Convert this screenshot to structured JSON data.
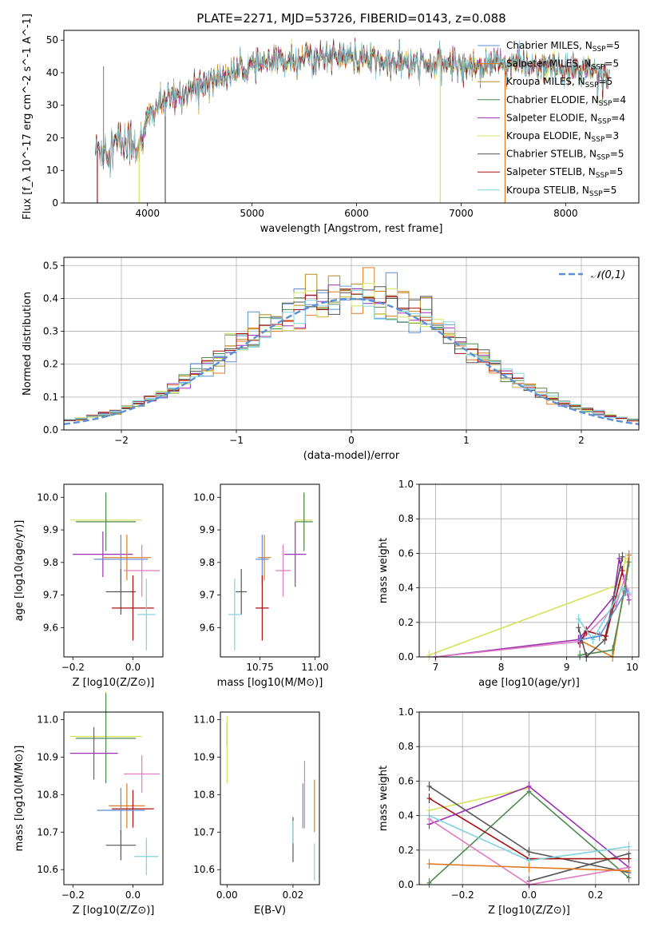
{
  "figure_title": "PLATE=2271, MJD=53726, FIBERID=0143, z=0.088",
  "colors": {
    "chabrier_miles": "#5b8fd6",
    "salpeter_miles": "#e07a20",
    "kroupa_miles": "#b58a22",
    "chabrier_elodie": "#4d8a4d",
    "salpeter_elodie": "#9a31b0",
    "kroupa_elodie": "#d4e35a",
    "chabrier_stelib": "#555555",
    "salpeter_stelib": "#a81010",
    "kroupa_stelib": "#7fd3de",
    "pink": "#e07ac2",
    "gaussian": "#5b8fd6",
    "grid": "#b0b0b0"
  },
  "chart_data": [
    {
      "id": "spectrum",
      "type": "line",
      "title": "PLATE=2271, MJD=53726, FIBERID=0143, z=0.088",
      "xlabel": "wavelength [Angstrom, rest frame]",
      "ylabel": "Flux [f_λ 10^-17 erg cm^-2 s^-1 A^-1]",
      "xlim": [
        3200,
        8700
      ],
      "ylim": [
        0,
        53
      ],
      "xticks": [
        "4000",
        "5000",
        "6000",
        "7000",
        "8000"
      ],
      "yticks": [
        "0",
        "10",
        "20",
        "30",
        "40",
        "50"
      ],
      "grid": false,
      "legend_position": "top-right",
      "series_names": [
        "Chabrier MILES, N_SSP=5",
        "Salpeter MILES, N_SSP=5",
        "Kroupa MILES, N_SSP=5",
        "Chabrier ELODIE, N_SSP=4",
        "Salpeter ELODIE, N_SSP=4",
        "Kroupa ELODIE, N_SSP=3",
        "Chabrier STELIB, N_SSP=5",
        "Salpeter STELIB, N_SSP=5",
        "Kroupa STELIB, N_SSP=5"
      ],
      "approx_continuum": {
        "wavelength": [
          3500,
          3700,
          3850,
          3950,
          4000,
          4100,
          4300,
          4500,
          4800,
          5000,
          5200,
          5500,
          5700,
          5900,
          6100,
          6300,
          6500,
          6700,
          6900,
          7100,
          7300,
          7500,
          7700,
          7900,
          8100,
          8300,
          8400
        ],
        "flux": [
          16,
          18,
          19,
          17,
          26,
          30,
          33,
          36,
          40,
          42,
          43,
          45,
          45,
          45,
          44,
          43,
          43,
          42,
          43,
          42,
          43,
          43,
          42,
          41,
          41,
          40,
          39
        ]
      }
    },
    {
      "id": "residual_histogram",
      "type": "histogram",
      "xlabel": "(data-model)/error",
      "ylabel": "Normed distribution",
      "xlim": [
        -2.5,
        2.5
      ],
      "ylim": [
        0,
        0.525
      ],
      "xticks": [
        "−2",
        "−1",
        "0",
        "1",
        "2"
      ],
      "yticks": [
        "0.0",
        "0.1",
        "0.2",
        "0.3",
        "0.4",
        "0.5"
      ],
      "grid": true,
      "legend": [
        "𝒩(0,1)"
      ],
      "legend_position": "top-right",
      "bin_width": 0.1
    },
    {
      "id": "age_vs_Z",
      "type": "scatter",
      "xlabel": "Z [log10(Z/Z⊙)]",
      "ylabel": "age [log10(age/yr)]",
      "xlim": [
        -0.23,
        0.1
      ],
      "ylim": [
        9.51,
        10.04
      ],
      "xticks": [
        "−0.2",
        "0.0"
      ],
      "yticks": [
        "9.6",
        "9.7",
        "9.8",
        "9.9",
        "10.0"
      ],
      "points": [
        {
          "series": "Kroupa ELODIE",
          "x": -0.09,
          "y": 9.93,
          "xerr": 0.12,
          "yerr": 0.08
        },
        {
          "series": "Chabrier ELODIE",
          "x": -0.09,
          "y": 9.925,
          "xerr": 0.1,
          "yerr": 0.09
        },
        {
          "series": "Salpeter ELODIE",
          "x": -0.1,
          "y": 9.825,
          "xerr": 0.1,
          "yerr": 0.07
        },
        {
          "series": "Salpeter MILES",
          "x": -0.02,
          "y": 9.815,
          "xerr": 0.08,
          "yerr": 0.07
        },
        {
          "series": "Chabrier MILES",
          "x": -0.04,
          "y": 9.81,
          "xerr": 0.09,
          "yerr": 0.075
        },
        {
          "series": "pink",
          "x": 0.03,
          "y": 9.775,
          "xerr": 0.06,
          "yerr": 0.08
        },
        {
          "series": "Chabrier STELIB",
          "x": -0.04,
          "y": 9.71,
          "xerr": 0.05,
          "yerr": 0.07
        },
        {
          "series": "Salpeter STELIB",
          "x": 0.0,
          "y": 9.66,
          "xerr": 0.07,
          "yerr": 0.1
        },
        {
          "series": "Kroupa STELIB",
          "x": 0.045,
          "y": 9.64,
          "xerr": 0.03,
          "yerr": 0.11
        }
      ]
    },
    {
      "id": "age_vs_mass",
      "type": "scatter",
      "xlabel": "mass [log10(M/M⊙)]",
      "ylabel": "",
      "xlim": [
        10.57,
        11.02
      ],
      "ylim": [
        9.51,
        10.04
      ],
      "xticks": [
        "10.75",
        "11.00"
      ],
      "yticks": [
        "9.6",
        "9.7",
        "9.8",
        "9.9",
        "10.0"
      ],
      "points": [
        {
          "series": "Kroupa ELODIE",
          "x": 10.95,
          "y": 9.93,
          "xerr": 0.04,
          "yerr": 0.08
        },
        {
          "series": "Chabrier ELODIE",
          "x": 10.95,
          "y": 9.925,
          "xerr": 0.04,
          "yerr": 0.09
        },
        {
          "series": "Salpeter ELODIE",
          "x": 10.91,
          "y": 9.825,
          "xerr": 0.05,
          "yerr": 0.1
        },
        {
          "series": "Salpeter MILES",
          "x": 10.77,
          "y": 9.815,
          "xerr": 0.03,
          "yerr": 0.07
        },
        {
          "series": "Chabrier MILES",
          "x": 10.76,
          "y": 9.81,
          "xerr": 0.03,
          "yerr": 0.075
        },
        {
          "series": "pink",
          "x": 10.855,
          "y": 9.775,
          "xerr": 0.035,
          "yerr": 0.08
        },
        {
          "series": "Chabrier STELIB",
          "x": 10.665,
          "y": 9.71,
          "xerr": 0.025,
          "yerr": 0.07
        },
        {
          "series": "Salpeter STELIB",
          "x": 10.76,
          "y": 9.66,
          "xerr": 0.03,
          "yerr": 0.1
        },
        {
          "series": "Kroupa STELIB",
          "x": 10.635,
          "y": 9.64,
          "xerr": 0.03,
          "yerr": 0.11
        }
      ]
    },
    {
      "id": "mass_weight_vs_age",
      "type": "line",
      "xlabel": "age [log10(age/yr)]",
      "ylabel": "mass weight",
      "xlim": [
        6.75,
        10.1
      ],
      "ylim": [
        0,
        1
      ],
      "xticks": [
        "7",
        "8",
        "9",
        "10"
      ],
      "yticks": [
        "0.0",
        "0.2",
        "0.4",
        "0.6",
        "0.8",
        "1.0"
      ],
      "grid": true,
      "series": [
        {
          "key": "kroupa_elodie",
          "x": [
            6.9,
            9.8,
            9.9
          ],
          "y": [
            0.01,
            0.42,
            0.57
          ]
        },
        {
          "key": "salpeter_miles",
          "x": [
            9.18,
            9.7,
            9.9,
            9.95
          ],
          "y": [
            0.1,
            0.0,
            0.45,
            0.59
          ]
        },
        {
          "key": "salpeter_elodie",
          "x": [
            7.0,
            9.18,
            9.72,
            9.8,
            9.95
          ],
          "y": [
            0.0,
            0.1,
            0.35,
            0.57,
            0.33
          ]
        },
        {
          "key": "pink",
          "x": [
            7.0,
            9.2,
            9.75,
            9.88,
            9.95
          ],
          "y": [
            0.0,
            0.09,
            0.3,
            0.45,
            0.36
          ]
        },
        {
          "key": "chabrier_elodie",
          "x": [
            9.2,
            9.7,
            9.88,
            9.95
          ],
          "y": [
            0.01,
            0.04,
            0.38,
            0.55
          ]
        },
        {
          "key": "chabrier_stelib",
          "x": [
            9.18,
            9.3,
            9.58,
            9.85
          ],
          "y": [
            0.17,
            0.0,
            0.1,
            0.58
          ]
        },
        {
          "key": "salpeter_stelib",
          "x": [
            9.2,
            9.3,
            9.6,
            9.85
          ],
          "y": [
            0.08,
            0.15,
            0.12,
            0.5
          ]
        },
        {
          "key": "kroupa_stelib",
          "x": [
            9.18,
            9.4,
            9.85,
            9.95
          ],
          "y": [
            0.22,
            0.1,
            0.4,
            0.37
          ]
        },
        {
          "key": "chabrier_miles",
          "x": [
            9.2,
            9.5,
            9.9
          ],
          "y": [
            0.1,
            0.12,
            0.38
          ]
        }
      ]
    },
    {
      "id": "mass_vs_Z",
      "type": "scatter",
      "xlabel": "Z [log10(Z/Z⊙)]",
      "ylabel": "mass [log10(M/M⊙)]",
      "xlim": [
        -0.23,
        0.1
      ],
      "ylim": [
        10.56,
        11.02
      ],
      "xticks": [
        "−0.2",
        "0.0"
      ],
      "yticks": [
        "10.6",
        "10.7",
        "10.8",
        "10.9",
        "11.0"
      ],
      "points": [
        {
          "series": "Kroupa ELODIE",
          "x": -0.09,
          "y": 10.955,
          "xerr": 0.12,
          "yerr": 0.12
        },
        {
          "series": "Chabrier ELODIE",
          "x": -0.09,
          "y": 10.95,
          "xerr": 0.1,
          "yerr": 0.12
        },
        {
          "series": "Salpeter ELODIE",
          "x": -0.13,
          "y": 10.91,
          "xerr": 0.08,
          "yerr": 0.07
        },
        {
          "series": "pink",
          "x": 0.03,
          "y": 10.855,
          "xerr": 0.06,
          "yerr": 0.05
        },
        {
          "series": "Salpeter MILES",
          "x": -0.02,
          "y": 10.77,
          "xerr": 0.06,
          "yerr": 0.06
        },
        {
          "series": "Salpeter STELIB",
          "x": 0.0,
          "y": 10.762,
          "xerr": 0.07,
          "yerr": 0.05
        },
        {
          "series": "Chabrier MILES",
          "x": -0.04,
          "y": 10.758,
          "xerr": 0.08,
          "yerr": 0.06
        },
        {
          "series": "Chabrier STELIB",
          "x": -0.04,
          "y": 10.665,
          "xerr": 0.05,
          "yerr": 0.04
        },
        {
          "series": "Kroupa STELIB",
          "x": 0.045,
          "y": 10.635,
          "xerr": 0.04,
          "yerr": 0.05
        }
      ]
    },
    {
      "id": "mass_vs_ebv",
      "type": "scatter",
      "xlabel": "E(B-V)",
      "ylabel": "",
      "xlim": [
        -0.002,
        0.028
      ],
      "ylim": [
        10.56,
        11.02
      ],
      "xticks": [
        "0.00",
        "0.02"
      ],
      "yticks": [
        "10.6",
        "10.7",
        "10.8",
        "10.9",
        "11.0"
      ],
      "points": [
        {
          "series": "Chabrier MILES",
          "x": 0.0,
          "y": 10.96,
          "xerr": 0,
          "yerr": 0.03
        },
        {
          "series": "Kroupa ELODIE",
          "x": 0.0,
          "y": 10.92,
          "xerr": 0,
          "yerr": 0.09
        },
        {
          "series": "Chabrier STELIB",
          "x": 0.02,
          "y": 10.68,
          "xerr": 0,
          "yerr": 0.06
        },
        {
          "series": "Kroupa STELIB",
          "x": 0.02,
          "y": 10.7,
          "xerr": 0,
          "yerr": 0.03
        },
        {
          "series": "Chabrier MILES",
          "x": 0.023,
          "y": 10.77,
          "xerr": 0,
          "yerr": 0.06
        },
        {
          "series": "pink",
          "x": 0.0235,
          "y": 10.8,
          "xerr": 0,
          "yerr": 0.09
        },
        {
          "series": "Salpeter MILES",
          "x": 0.0265,
          "y": 10.77,
          "xerr": 0,
          "yerr": 0.07
        },
        {
          "series": "Kroupa STELIB",
          "x": 0.0265,
          "y": 10.62,
          "xerr": 0,
          "yerr": 0.05
        }
      ]
    },
    {
      "id": "mass_weight_vs_Z",
      "type": "line",
      "xlabel": "Z [log10(Z/Z⊙)]",
      "ylabel": "mass weight",
      "xlim": [
        -0.33,
        0.33
      ],
      "ylim": [
        0,
        1
      ],
      "xticks": [
        "−0.2",
        "0.0",
        "0.2"
      ],
      "yticks": [
        "0.0",
        "0.2",
        "0.4",
        "0.6",
        "0.8",
        "1.0"
      ],
      "grid": true,
      "series": [
        {
          "key": "kroupa_elodie",
          "x": [
            -0.3,
            0.0
          ],
          "y": [
            0.43,
            0.56
          ]
        },
        {
          "key": "chabrier_elodie",
          "x": [
            -0.3,
            0.0,
            0.3
          ],
          "y": [
            0.01,
            0.54,
            0.04
          ]
        },
        {
          "key": "chabrier_stelib",
          "x": [
            -0.3,
            0.0,
            0.3
          ],
          "y": [
            0.57,
            0.19,
            0.07
          ]
        },
        {
          "key": "chabrier_stelib",
          "x": [
            0.0,
            0.3
          ],
          "y": [
            0.02,
            0.18
          ]
        },
        {
          "key": "salpeter_stelib",
          "x": [
            -0.3,
            0.0,
            0.3
          ],
          "y": [
            0.5,
            0.15,
            0.15
          ]
        },
        {
          "key": "salpeter_elodie",
          "x": [
            -0.3,
            0.0,
            0.3
          ],
          "y": [
            0.35,
            0.57,
            0.1
          ]
        },
        {
          "key": "kroupa_stelib",
          "x": [
            -0.3,
            0.0,
            0.3
          ],
          "y": [
            0.4,
            0.14,
            0.22
          ]
        },
        {
          "key": "pink",
          "x": [
            -0.3,
            0.0,
            0.3
          ],
          "y": [
            0.38,
            0.0,
            0.1
          ]
        },
        {
          "key": "salpeter_miles",
          "x": [
            -0.3,
            0.0,
            0.3
          ],
          "y": [
            0.12,
            0.1,
            0.08
          ]
        }
      ]
    }
  ]
}
